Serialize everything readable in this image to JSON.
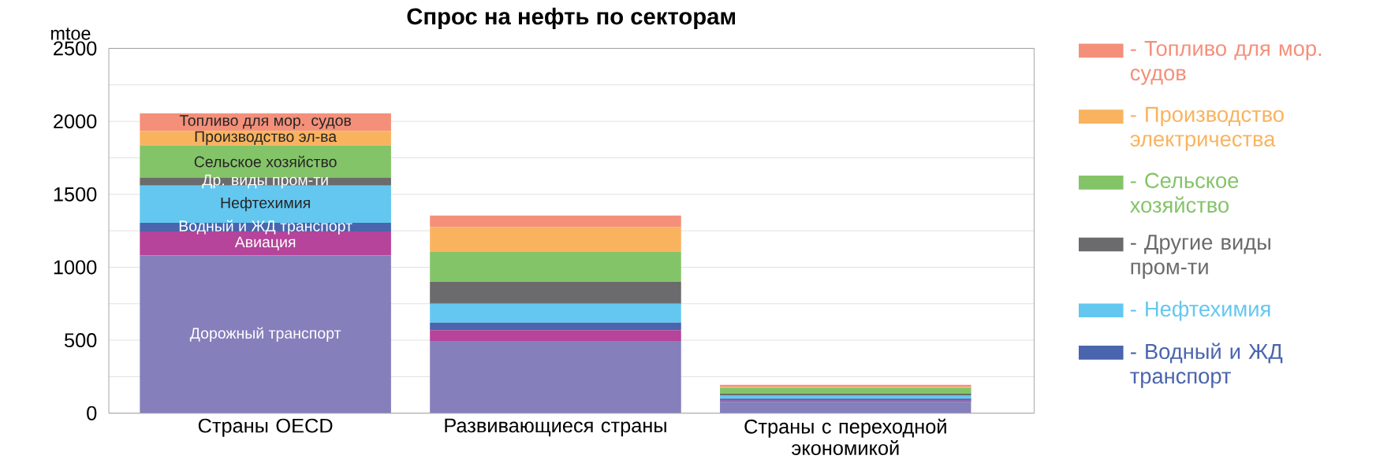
{
  "chart_data": {
    "type": "bar",
    "title": "Спрос на нефть по секторам",
    "ylabel": "mtoe",
    "categories": [
      "Страны OECD",
      "Развивающиеся страны",
      "Страны с переходной экономикой"
    ],
    "stacked": true,
    "series": [
      {
        "color": "#857fbb",
        "values": [
          1080,
          495,
          79
        ]
      },
      {
        "color": "#b5449a",
        "values": [
          165,
          75,
          8
        ]
      },
      {
        "name": "- Водный и ЖД транспорт",
        "color": "#4a64ae",
        "values": [
          60,
          50,
          13
        ]
      },
      {
        "name": "- Нефтехимия",
        "color": "#63c7f0",
        "values": [
          255,
          130,
          23
        ]
      },
      {
        "name": "- Другие виды пром-ти",
        "color": "#6b6b6d",
        "values": [
          55,
          150,
          10
        ]
      },
      {
        "name": "- Сельское хозяйство",
        "color": "#84c468",
        "values": [
          220,
          205,
          42
        ]
      },
      {
        "name": "- Производство электричества",
        "color": "#f9b35f",
        "values": [
          100,
          170,
          5
        ]
      },
      {
        "name": "- Топливо для мор. судов",
        "color": "#f4907a",
        "values": [
          120,
          80,
          14
        ]
      }
    ],
    "ylim": [
      0,
      2500
    ],
    "yticks": [
      0,
      {
        "value": 250,
        "label": null
      },
      500,
      {
        "value": 750,
        "label": null
      },
      1000,
      {
        "value": 1250,
        "label": null
      },
      1500,
      {
        "value": 1750,
        "label": null
      },
      2000,
      {
        "value": 2250,
        "label": null
      },
      2500
    ],
    "grid": "y",
    "legend": "right",
    "annotations": [
      "Топливо для мор. судов",
      "Производство эл-ва",
      "Сельское хозяйство",
      "Др. виды пром-ти",
      "Нефтехимия",
      "Водный и ЖД транспорт",
      "Авиация",
      "Дорожный транспорт"
    ]
  }
}
